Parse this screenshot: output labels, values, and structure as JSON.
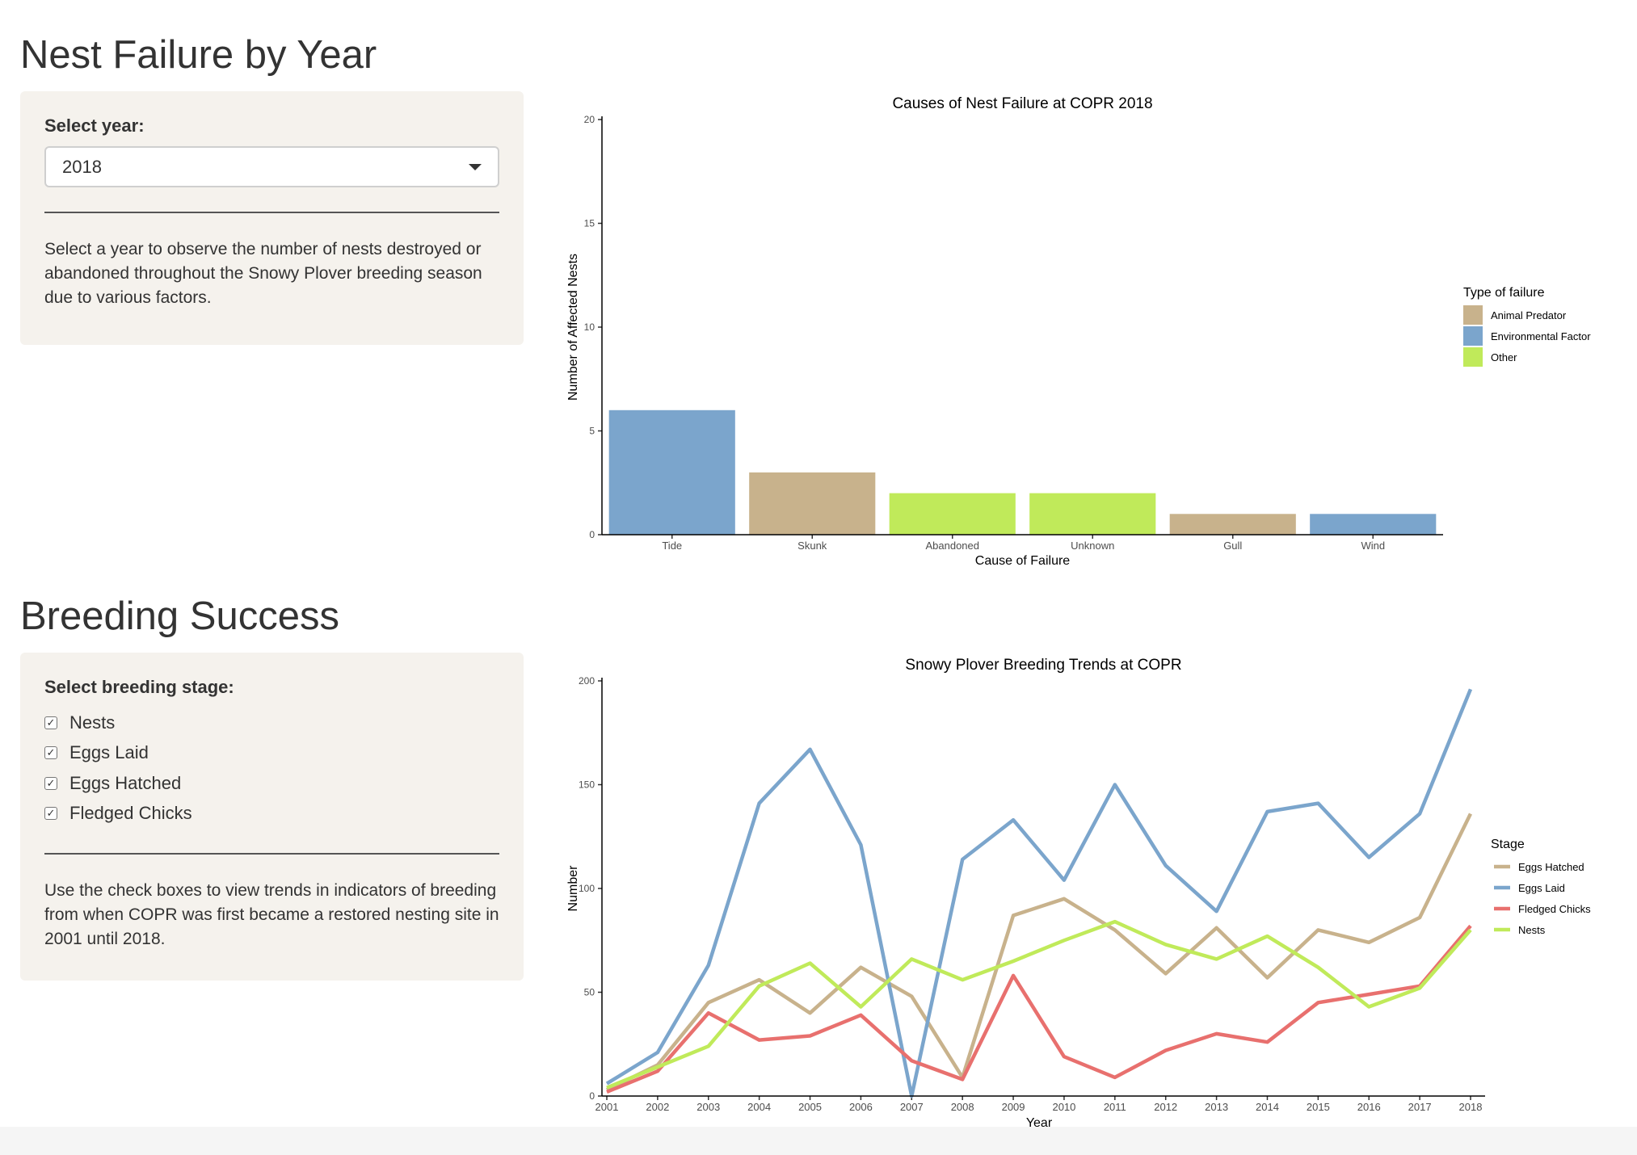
{
  "section1": {
    "title": "Nest Failure by Year",
    "select_label": "Select year:",
    "select_value": "2018",
    "help_text": "Select a year to observe the number of nests destroyed or abandoned throughout the Snowy Plover breeding season due to various factors."
  },
  "section2": {
    "title": "Breeding Success",
    "checkbox_label": "Select breeding stage:",
    "checkboxes": [
      {
        "label": "Nests",
        "checked": true
      },
      {
        "label": "Eggs Laid",
        "checked": true
      },
      {
        "label": "Eggs Hatched",
        "checked": true
      },
      {
        "label": "Fledged Chicks",
        "checked": true
      }
    ],
    "help_text": "Use the check boxes to view trends in indicators of breeding from when COPR was first became a restored nesting site in 2001 until 2018."
  },
  "chart_data": [
    {
      "type": "bar",
      "title": "Causes of Nest Failure at COPR 2018",
      "xlabel": "Cause of Failure",
      "ylabel": "Number of Affected Nests",
      "ylim": [
        0,
        20
      ],
      "yticks": [
        0,
        5,
        10,
        15,
        20
      ],
      "grid": false,
      "legend_position": "right",
      "legend_title": "Type of failure",
      "legend": [
        {
          "label": "Animal Predator",
          "color": "#c8b28c"
        },
        {
          "label": "Environmental Factor",
          "color": "#7ba5cc"
        },
        {
          "label": "Other",
          "color": "#c0ea5a"
        }
      ],
      "categories": [
        "Tide",
        "Skunk",
        "Abandoned",
        "Unknown",
        "Gull",
        "Wind"
      ],
      "values": [
        6,
        3,
        2,
        2,
        1,
        1
      ],
      "types": [
        "Environmental Factor",
        "Animal Predator",
        "Other",
        "Other",
        "Animal Predator",
        "Environmental Factor"
      ]
    },
    {
      "type": "line",
      "title": "Snowy Plover Breeding Trends at COPR",
      "xlabel": "Year",
      "ylabel": "Number",
      "ylim": [
        0,
        200
      ],
      "yticks": [
        0,
        50,
        100,
        150,
        200
      ],
      "grid": false,
      "legend_position": "right",
      "legend_title": "Stage",
      "x": [
        2001,
        2002,
        2003,
        2004,
        2005,
        2006,
        2007,
        2008,
        2009,
        2010,
        2011,
        2012,
        2013,
        2014,
        2015,
        2016,
        2017,
        2018
      ],
      "series": [
        {
          "name": "Eggs Hatched",
          "color": "#c8b28c",
          "values": [
            3,
            15,
            45,
            56,
            40,
            62,
            48,
            9,
            87,
            95,
            80,
            59,
            81,
            57,
            80,
            74,
            86,
            136
          ]
        },
        {
          "name": "Eggs Laid",
          "color": "#7ba5cc",
          "values": [
            6,
            21,
            63,
            141,
            167,
            121,
            0,
            114,
            133,
            104,
            150,
            111,
            89,
            137,
            141,
            115,
            136,
            196
          ]
        },
        {
          "name": "Fledged Chicks",
          "color": "#e8706e",
          "values": [
            2,
            12,
            40,
            27,
            29,
            39,
            17,
            8,
            58,
            19,
            9,
            22,
            30,
            26,
            45,
            49,
            53,
            82
          ]
        },
        {
          "name": "Nests",
          "color": "#c0ea5a",
          "values": [
            4,
            14,
            24,
            53,
            64,
            43,
            66,
            56,
            65,
            75,
            84,
            73,
            66,
            77,
            62,
            43,
            52,
            80
          ]
        }
      ]
    }
  ]
}
